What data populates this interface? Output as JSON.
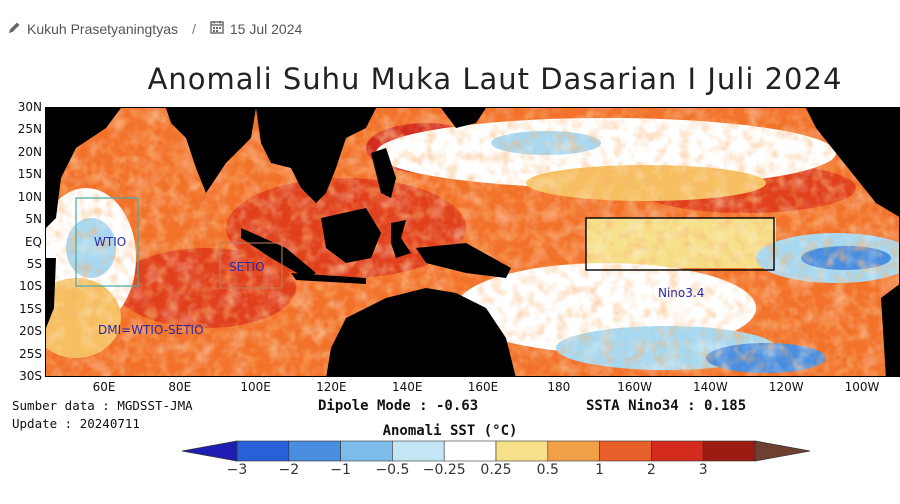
{
  "byline": {
    "author_icon": "pencil-icon",
    "author": "Kukuh Prasetyaningtyas",
    "separator": "/",
    "date_icon": "calendar-icon",
    "date": "15 Jul 2024"
  },
  "map": {
    "title": "Anomali Suhu Muka Laut Dasarian I Juli 2024",
    "lat_labels": [
      "30N",
      "25N",
      "20N",
      "15N",
      "10N",
      "5N",
      "EQ",
      "5S",
      "10S",
      "15S",
      "20S",
      "25S",
      "30S"
    ],
    "lon_labels": [
      "60E",
      "80E",
      "100E",
      "120E",
      "140E",
      "160E",
      "180",
      "160W",
      "140W",
      "120W",
      "100W"
    ],
    "regions": [
      {
        "label": "WTIO",
        "color": "#2a2aa8"
      },
      {
        "label": "SETIO",
        "color": "#2a2aa8"
      },
      {
        "label": "Nino3.4",
        "color": "#2a2aa8"
      },
      {
        "label": "DMI=WTIO-SETIO",
        "color": "#2a2aa8"
      }
    ],
    "colors": {
      "land": "#000000",
      "strong_warm": "#e0401c",
      "warm": "#f2722a",
      "mild": "#f6c060",
      "neutral": "#ffffff",
      "cool": "#a8d8f0",
      "cold": "#4a8ee0"
    }
  },
  "footer": {
    "source": "Sumber data : MGDSST-JMA",
    "update": "Update : 20240711",
    "dipole": "Dipole Mode : -0.63",
    "nino": "SSTA Nino34 : 0.185"
  },
  "colorbar": {
    "title": "Anomali SST (°C)",
    "labels": [
      "−3",
      "−2",
      "−1",
      "−0.5",
      "−0.25",
      "0.25",
      "0.5",
      "1",
      "2",
      "3"
    ],
    "colors": [
      "#1e1eb4",
      "#2860d8",
      "#4a8ee0",
      "#7cbcea",
      "#c4e6f4",
      "#ffffff",
      "#f6e08a",
      "#f2a048",
      "#e8602a",
      "#d42c1c",
      "#9c1c14",
      "#6e4032"
    ]
  }
}
